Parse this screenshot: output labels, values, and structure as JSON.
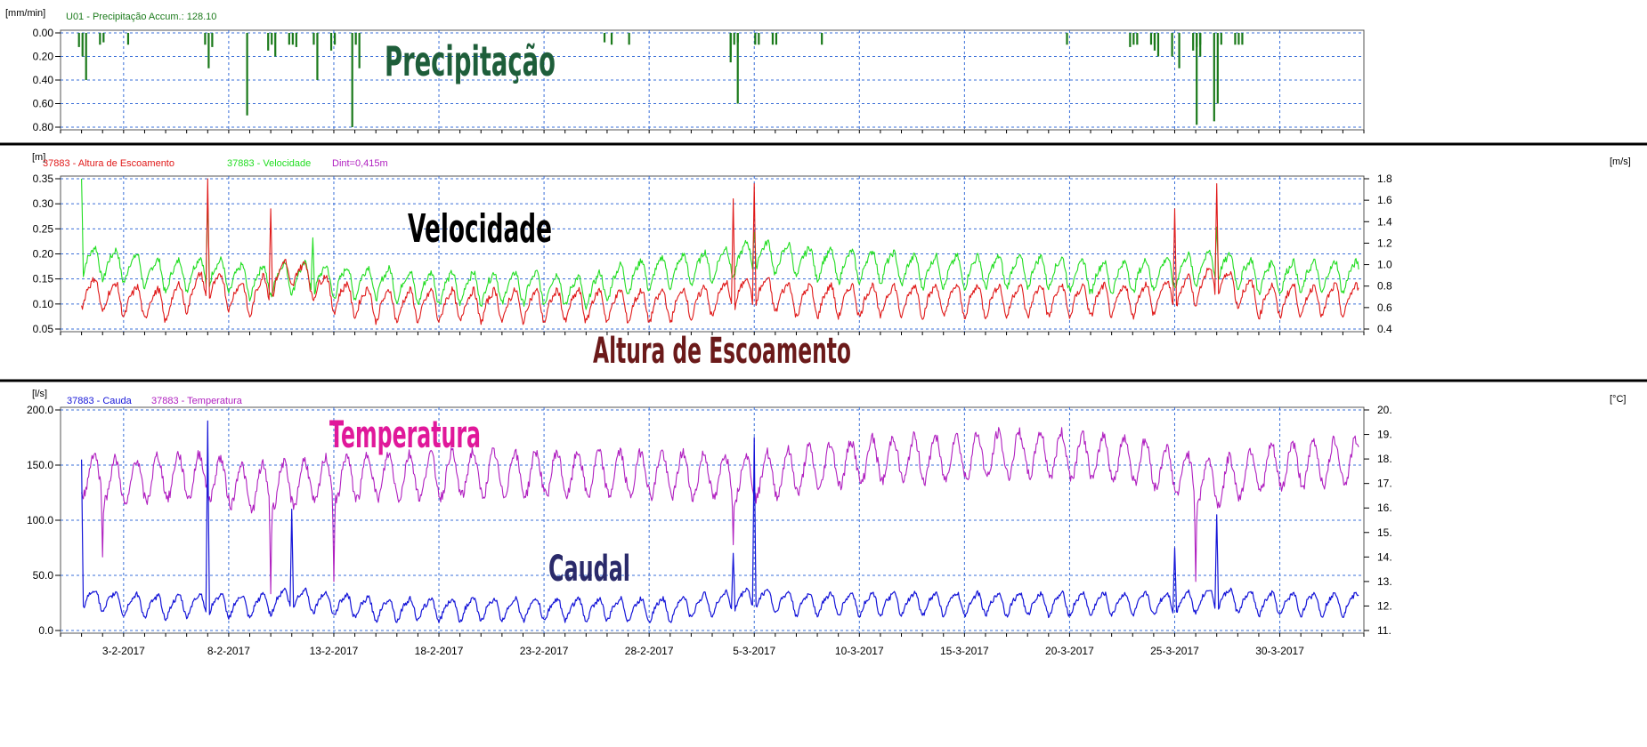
{
  "colors": {
    "precipitation": "#1b7a1b",
    "altura": "#e01a1a",
    "velocidade": "#22dd22",
    "caudal": "#1515d8",
    "temperatura": "#b020c0",
    "grid": "#3a6fd8",
    "divider": "#000000"
  },
  "x_ticks": [
    "3-2-2017",
    "8-2-2017",
    "13-2-2017",
    "18-2-2017",
    "23-2-2017",
    "28-2-2017",
    "5-3-2017",
    "10-3-2017",
    "15-3-2017",
    "20-3-2017",
    "25-3-2017",
    "30-3-2017"
  ],
  "panel1": {
    "unit": "[mm/min]",
    "legend": "U01 - Precipitação   Accum.: 128.10",
    "annotation": "Precipitação",
    "y_ticks": [
      "0.00",
      "0.20",
      "0.40",
      "0.60",
      "0.80"
    ]
  },
  "panel2": {
    "unit_left": "[m]",
    "unit_right": "[m/s]",
    "legend_altura": "37883 - Altura de Escoamento",
    "legend_velocidade": "37883 - Velocidade",
    "legend_dint": "Dint=0,415m",
    "annotation_velocidade": "Velocidade",
    "annotation_altura": "Altura de Escoamento",
    "y_ticks_left": [
      "0.35",
      "0.30",
      "0.25",
      "0.20",
      "0.15",
      "0.10",
      "0.05"
    ],
    "y_ticks_right": [
      "1.8",
      "1.6",
      "1.4",
      "1.2",
      "1.0",
      "0.8",
      "0.6",
      "0.4"
    ]
  },
  "panel3": {
    "unit_left": "[l/s]",
    "unit_right": "[°C]",
    "legend_caudal": "37883 - Cauda",
    "legend_temperatura": "37883 - Temperatura",
    "annotation_temperatura": "Temperatura",
    "annotation_caudal": "Caudal",
    "y_ticks_left": [
      "200.0",
      "150.0",
      "100.0",
      "50.0",
      "0.0"
    ],
    "y_ticks_right": [
      "20.",
      "19.",
      "18.",
      "17.",
      "16.",
      "15.",
      "14.",
      "13.",
      "12.",
      "11."
    ]
  },
  "chart_data": [
    {
      "type": "bar",
      "ylabel": "[mm/min]",
      "series_name": "U01 - Precipitação",
      "ylim": [
        0.8,
        0.0
      ],
      "x_range_days": [
        "2017-01-31",
        "2017-04-03"
      ],
      "series": [
        {
          "name": "U01 - Precipitação",
          "x": [
            "2017-02-01",
            "2017-02-01",
            "2017-02-01",
            "2017-02-02",
            "2017-02-02",
            "2017-02-03",
            "2017-02-07",
            "2017-02-07",
            "2017-02-07",
            "2017-02-09",
            "2017-02-10",
            "2017-02-10",
            "2017-02-10",
            "2017-02-11",
            "2017-02-11",
            "2017-02-11",
            "2017-02-12",
            "2017-02-12",
            "2017-02-13",
            "2017-02-13",
            "2017-02-14",
            "2017-02-14",
            "2017-02-14",
            "2017-02-26",
            "2017-02-26",
            "2017-02-27",
            "2017-03-04",
            "2017-03-04",
            "2017-03-04",
            "2017-03-04",
            "2017-03-04",
            "2017-03-05",
            "2017-03-05",
            "2017-03-06",
            "2017-03-06",
            "2017-03-08",
            "2017-03-20",
            "2017-03-23",
            "2017-03-23",
            "2017-03-23",
            "2017-03-24",
            "2017-03-24",
            "2017-03-24",
            "2017-03-24",
            "2017-03-25",
            "2017-03-25",
            "2017-03-26",
            "2017-03-26",
            "2017-03-26",
            "2017-03-26",
            "2017-03-26",
            "2017-03-27",
            "2017-03-27",
            "2017-03-27",
            "2017-03-28",
            "2017-03-28",
            "2017-03-28"
          ],
          "values": [
            0.12,
            0.2,
            0.4,
            0.1,
            0.08,
            0.1,
            0.1,
            0.3,
            0.12,
            0.7,
            0.1,
            0.2,
            0.15,
            0.1,
            0.12,
            0.1,
            0.1,
            0.4,
            0.15,
            0.1,
            0.3,
            0.8,
            0.1,
            0.1,
            0.08,
            0.1,
            0.6,
            0.2,
            0.1,
            0.08,
            0.25,
            0.1,
            0.1,
            0.1,
            0.1,
            0.1,
            0.1,
            0.1,
            0.1,
            0.12,
            0.1,
            0.2,
            0.1,
            0.15,
            0.3,
            0.2,
            0.12,
            0.2,
            0.15,
            0.78,
            0.1,
            0.75,
            0.6,
            0.1,
            0.1,
            0.1,
            0.1
          ]
        }
      ]
    },
    {
      "type": "line",
      "xlabel": "",
      "ylabel": "[m]",
      "y2label": "[m/s]",
      "ylim": [
        0.05,
        0.35
      ],
      "y2lim": [
        0.4,
        1.8
      ],
      "x_range_days": [
        "2017-01-31",
        "2017-04-03"
      ],
      "series": [
        {
          "name": "37883 - Altura de Escoamento",
          "axis": "left",
          "x": [
            "2017-02-01",
            "2017-02-03",
            "2017-02-05",
            "2017-02-07",
            "2017-02-09",
            "2017-02-11",
            "2017-02-13",
            "2017-02-15",
            "2017-02-17",
            "2017-02-19",
            "2017-02-21",
            "2017-02-23",
            "2017-02-25",
            "2017-02-27",
            "2017-03-01",
            "2017-03-03",
            "2017-03-05",
            "2017-03-07",
            "2017-03-09",
            "2017-03-11",
            "2017-03-13",
            "2017-03-15",
            "2017-03-17",
            "2017-03-19",
            "2017-03-21",
            "2017-03-23",
            "2017-03-25",
            "2017-03-27",
            "2017-03-29",
            "2017-03-31",
            "2017-04-02"
          ],
          "values": [
            0.13,
            0.11,
            0.1,
            0.14,
            0.11,
            0.17,
            0.12,
            0.1,
            0.1,
            0.1,
            0.1,
            0.1,
            0.1,
            0.1,
            0.1,
            0.11,
            0.13,
            0.11,
            0.11,
            0.11,
            0.11,
            0.11,
            0.11,
            0.11,
            0.11,
            0.11,
            0.12,
            0.15,
            0.11,
            0.11,
            0.11
          ],
          "peaks": [
            {
              "x": "2017-02-07",
              "y": 0.35
            },
            {
              "x": "2017-02-10",
              "y": 0.29
            },
            {
              "x": "2017-03-04",
              "y": 0.31
            },
            {
              "x": "2017-03-05",
              "y": 0.34
            },
            {
              "x": "2017-03-25",
              "y": 0.29
            },
            {
              "x": "2017-03-27",
              "y": 0.34
            }
          ]
        },
        {
          "name": "37883 - Velocidade",
          "axis": "right",
          "x": [
            "2017-02-01",
            "2017-02-03",
            "2017-02-05",
            "2017-02-07",
            "2017-02-09",
            "2017-02-11",
            "2017-02-13",
            "2017-02-15",
            "2017-02-17",
            "2017-02-19",
            "2017-02-21",
            "2017-02-23",
            "2017-02-25",
            "2017-02-27",
            "2017-03-01",
            "2017-03-03",
            "2017-03-05",
            "2017-03-07",
            "2017-03-09",
            "2017-03-11",
            "2017-03-13",
            "2017-03-15",
            "2017-03-17",
            "2017-03-19",
            "2017-03-21",
            "2017-03-23",
            "2017-03-25",
            "2017-03-27",
            "2017-03-29",
            "2017-03-31",
            "2017-04-02"
          ],
          "values": [
            1.05,
            1.0,
            0.9,
            0.95,
            0.85,
            0.9,
            0.85,
            0.85,
            0.8,
            0.8,
            0.8,
            0.8,
            0.75,
            0.9,
            0.95,
            1.0,
            1.1,
            1.05,
            1.0,
            1.0,
            0.95,
            0.95,
            0.95,
            0.95,
            0.9,
            0.9,
            0.95,
            1.0,
            0.9,
            0.9,
            0.9
          ],
          "peaks": [
            {
              "x": "2017-02-01",
              "y": 1.8
            },
            {
              "x": "2017-02-07",
              "y": 1.6
            },
            {
              "x": "2017-02-12",
              "y": 1.25
            },
            {
              "x": "2017-03-05",
              "y": 1.3
            },
            {
              "x": "2017-03-27",
              "y": 1.35
            }
          ]
        }
      ],
      "annotation": "Dint=0,415m"
    },
    {
      "type": "line",
      "xlabel": "",
      "ylabel": "[l/s]",
      "y2label": "[°C]",
      "ylim": [
        0,
        200
      ],
      "y2lim": [
        11,
        20
      ],
      "x_range_days": [
        "2017-01-31",
        "2017-04-03"
      ],
      "x_ticks": [
        "3-2-2017",
        "8-2-2017",
        "13-2-2017",
        "18-2-2017",
        "23-2-2017",
        "28-2-2017",
        "5-3-2017",
        "10-3-2017",
        "15-3-2017",
        "20-3-2017",
        "25-3-2017",
        "30-3-2017"
      ],
      "series": [
        {
          "name": "37883 - Cauda",
          "axis": "left",
          "x": [
            "2017-02-01",
            "2017-02-03",
            "2017-02-05",
            "2017-02-07",
            "2017-02-09",
            "2017-02-11",
            "2017-02-13",
            "2017-02-15",
            "2017-02-17",
            "2017-02-19",
            "2017-02-21",
            "2017-02-23",
            "2017-02-25",
            "2017-02-27",
            "2017-03-01",
            "2017-03-03",
            "2017-03-05",
            "2017-03-07",
            "2017-03-09",
            "2017-03-11",
            "2017-03-13",
            "2017-03-15",
            "2017-03-17",
            "2017-03-19",
            "2017-03-21",
            "2017-03-23",
            "2017-03-25",
            "2017-03-27",
            "2017-03-29",
            "2017-03-31",
            "2017-04-02"
          ],
          "values": [
            30,
            25,
            22,
            25,
            22,
            30,
            25,
            20,
            20,
            20,
            20,
            20,
            20,
            20,
            20,
            25,
            30,
            25,
            25,
            25,
            25,
            25,
            25,
            25,
            25,
            25,
            25,
            30,
            25,
            25,
            25
          ],
          "peaks": [
            {
              "x": "2017-02-01",
              "y": 155
            },
            {
              "x": "2017-02-07",
              "y": 190
            },
            {
              "x": "2017-02-11",
              "y": 110
            },
            {
              "x": "2017-03-04",
              "y": 70
            },
            {
              "x": "2017-03-05",
              "y": 175
            },
            {
              "x": "2017-03-25",
              "y": 75
            },
            {
              "x": "2017-03-27",
              "y": 105
            }
          ]
        },
        {
          "name": "37883 - Temperatura",
          "axis": "right",
          "x": [
            "2017-02-01",
            "2017-02-03",
            "2017-02-05",
            "2017-02-07",
            "2017-02-09",
            "2017-02-11",
            "2017-02-13",
            "2017-02-15",
            "2017-02-17",
            "2017-02-19",
            "2017-02-21",
            "2017-02-23",
            "2017-02-25",
            "2017-02-27",
            "2017-03-01",
            "2017-03-03",
            "2017-03-05",
            "2017-03-07",
            "2017-03-09",
            "2017-03-11",
            "2017-03-13",
            "2017-03-15",
            "2017-03-17",
            "2017-03-19",
            "2017-03-21",
            "2017-03-23",
            "2017-03-25",
            "2017-03-27",
            "2017-03-29",
            "2017-03-31",
            "2017-04-02"
          ],
          "values": [
            17.5,
            17.0,
            17.3,
            17.3,
            16.8,
            17.0,
            17.2,
            17.3,
            17.3,
            17.4,
            17.4,
            17.4,
            17.4,
            17.4,
            17.4,
            17.3,
            17.3,
            17.5,
            17.8,
            18.0,
            18.0,
            18.1,
            18.2,
            18.2,
            18.1,
            18.0,
            17.5,
            17.0,
            17.6,
            17.8,
            17.9
          ],
          "dips": [
            {
              "x": "2017-02-02",
              "y": 14.0
            },
            {
              "x": "2017-02-10",
              "y": 12.5
            },
            {
              "x": "2017-02-13",
              "y": 13.0
            },
            {
              "x": "2017-03-04",
              "y": 14.5
            },
            {
              "x": "2017-03-26",
              "y": 13.0
            }
          ]
        }
      ]
    }
  ]
}
